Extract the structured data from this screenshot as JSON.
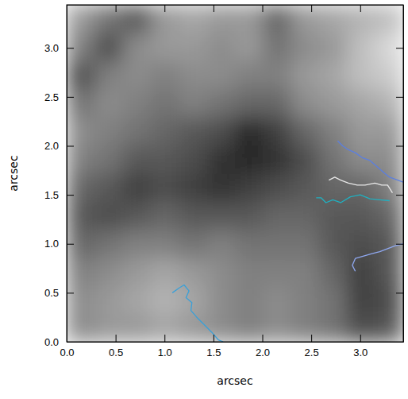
{
  "chart_data": {
    "type": "heatmap",
    "x_label": "arcsec",
    "y_label": "arcsec",
    "xlim": [
      0,
      3.44
    ],
    "ylim": [
      0,
      3.44
    ],
    "xticks": [
      {
        "value": 0,
        "label": "0.0"
      },
      {
        "value": 0.5,
        "label": "0.5"
      },
      {
        "value": 1,
        "label": "1.0"
      },
      {
        "value": 1.5,
        "label": "1.5"
      },
      {
        "value": 2,
        "label": "2.0"
      },
      {
        "value": 2.5,
        "label": "2.5"
      },
      {
        "value": 3,
        "label": "3.0"
      }
    ],
    "yticks": [
      {
        "value": 0,
        "label": "0.0"
      },
      {
        "value": 0.5,
        "label": "0.5"
      },
      {
        "value": 1,
        "label": "1.0"
      },
      {
        "value": 1.5,
        "label": "1.5"
      },
      {
        "value": 2,
        "label": "2.0"
      },
      {
        "value": 2.5,
        "label": "2.5"
      },
      {
        "value": 3,
        "label": "3.0"
      }
    ],
    "cells": [
      [
        0.55,
        0.6,
        0.6,
        0.65,
        0.6,
        0.55,
        0.5,
        0.55,
        0.5,
        0.45,
        0.3,
        0.35
      ],
      [
        0.55,
        0.6,
        0.65,
        0.7,
        0.65,
        0.55,
        0.5,
        0.55,
        0.5,
        0.45,
        0.25,
        0.3
      ],
      [
        0.5,
        0.55,
        0.6,
        0.65,
        0.6,
        0.55,
        0.5,
        0.5,
        0.5,
        0.4,
        0.25,
        0.35
      ],
      [
        0.4,
        0.45,
        0.5,
        0.5,
        0.45,
        0.5,
        0.45,
        0.45,
        0.45,
        0.35,
        0.3,
        0.35
      ],
      [
        0.35,
        0.3,
        0.35,
        0.4,
        0.35,
        0.35,
        0.35,
        0.4,
        0.4,
        0.35,
        0.35,
        0.4
      ],
      [
        0.4,
        0.35,
        0.25,
        0.3,
        0.25,
        0.2,
        0.25,
        0.3,
        0.35,
        0.4,
        0.4,
        0.5
      ],
      [
        0.5,
        0.45,
        0.35,
        0.35,
        0.3,
        0.2,
        0.15,
        0.2,
        0.3,
        0.45,
        0.55,
        0.55
      ],
      [
        0.55,
        0.5,
        0.45,
        0.4,
        0.35,
        0.3,
        0.15,
        0.25,
        0.4,
        0.5,
        0.6,
        0.6
      ],
      [
        0.45,
        0.55,
        0.5,
        0.45,
        0.5,
        0.45,
        0.4,
        0.4,
        0.55,
        0.6,
        0.65,
        0.7
      ],
      [
        0.3,
        0.5,
        0.55,
        0.5,
        0.55,
        0.55,
        0.5,
        0.5,
        0.6,
        0.65,
        0.75,
        0.8
      ],
      [
        0.5,
        0.3,
        0.55,
        0.6,
        0.6,
        0.55,
        0.6,
        0.45,
        0.55,
        0.6,
        0.75,
        0.85
      ],
      [
        0.6,
        0.45,
        0.35,
        0.6,
        0.65,
        0.6,
        0.6,
        0.4,
        0.6,
        0.65,
        0.7,
        0.75
      ]
    ],
    "series": [
      {
        "type": "line",
        "color": "#5b7fe0",
        "x": [
          2.77,
          2.82,
          2.88,
          2.95,
          3.02,
          3.1,
          3.18,
          3.25,
          3.3,
          3.44
        ],
        "values": [
          2.05,
          2.0,
          1.96,
          1.93,
          1.88,
          1.85,
          1.78,
          1.72,
          1.68,
          1.63
        ]
      },
      {
        "type": "line",
        "color": "#e8e8e8",
        "x": [
          2.68,
          2.74,
          2.8,
          2.88,
          2.97,
          3.05,
          3.15,
          3.22,
          3.28,
          3.33
        ],
        "values": [
          1.65,
          1.68,
          1.65,
          1.62,
          1.6,
          1.6,
          1.62,
          1.6,
          1.6,
          1.52
        ]
      },
      {
        "type": "line",
        "color": "#20b0c0",
        "x": [
          2.55,
          2.6,
          2.65,
          2.72,
          2.8,
          2.9,
          3.0,
          3.1,
          3.2,
          3.3
        ],
        "values": [
          1.47,
          1.47,
          1.42,
          1.45,
          1.42,
          1.48,
          1.5,
          1.46,
          1.45,
          1.44
        ]
      },
      {
        "type": "line",
        "color": "#8fa8f0",
        "x": [
          2.95,
          2.92,
          2.95,
          3.05,
          3.12,
          3.2,
          3.28,
          3.36,
          3.44
        ],
        "values": [
          0.72,
          0.78,
          0.85,
          0.88,
          0.9,
          0.92,
          0.95,
          0.98,
          1.0
        ]
      },
      {
        "type": "line",
        "color": "#3aa0d8",
        "x": [
          1.08,
          1.15,
          1.2,
          1.25,
          1.22,
          1.28,
          1.27,
          1.33,
          1.4,
          1.48,
          1.55,
          1.6
        ],
        "values": [
          0.5,
          0.55,
          0.58,
          0.52,
          0.45,
          0.4,
          0.32,
          0.25,
          0.18,
          0.1,
          0.02,
          0.0
        ]
      }
    ]
  }
}
